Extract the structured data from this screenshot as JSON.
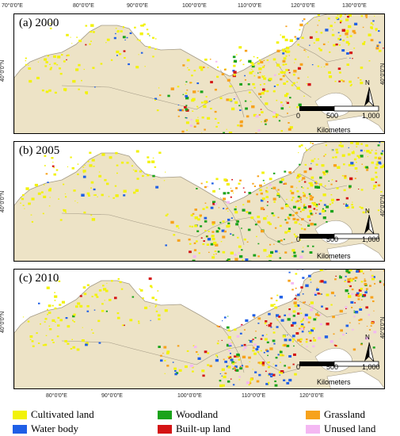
{
  "ticks": {
    "top": [
      "70°0'0\"E",
      "80°0'0\"E",
      "90°0'0\"E",
      "100°0'0\"E",
      "110°0'0\"E",
      "120°0'0\"E",
      "130°0'0\"E"
    ],
    "bottom": [
      "80°0'0\"E",
      "90°0'0\"E",
      "100°0'0\"E",
      "110°0'0\"E",
      "120°0'0\"E"
    ],
    "lat": "40°0'0\"N"
  },
  "panels": [
    {
      "label": "(a) 2000"
    },
    {
      "label": "(b) 2005"
    },
    {
      "label": "(c) 2010"
    }
  ],
  "north_label": "N",
  "scale": {
    "labels": [
      "0",
      "500",
      "1,000"
    ],
    "unit": "Kilometers"
  },
  "legend": [
    {
      "label": "Cultivated land",
      "color": "#f2f20a"
    },
    {
      "label": "Woodland",
      "color": "#1aa31a"
    },
    {
      "label": "Grassland",
      "color": "#f7a21b"
    },
    {
      "label": "Water body",
      "color": "#1f5fe6"
    },
    {
      "label": "Built-up land",
      "color": "#d41414"
    },
    {
      "label": "Unused land",
      "color": "#f4b8f2"
    }
  ],
  "colors": {
    "land": "#ede3c6",
    "sea": "#ffffff",
    "border": "#a39a86"
  }
}
